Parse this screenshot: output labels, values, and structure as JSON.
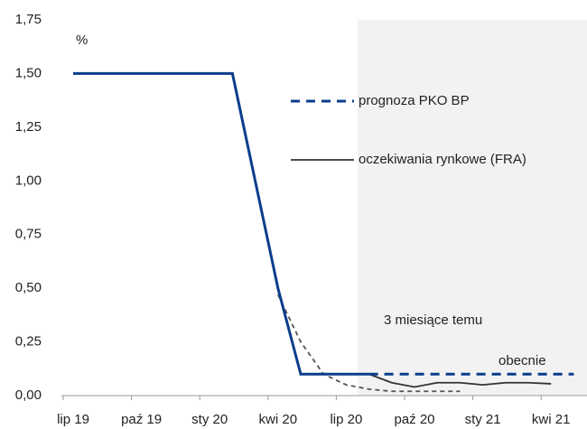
{
  "chart_data": {
    "type": "line",
    "unit_label": "%",
    "categories": [
      "lip 19",
      null,
      null,
      "paź 19",
      null,
      null,
      "sty 20",
      null,
      null,
      "kwi 20",
      null,
      null,
      "lip 20",
      null,
      null,
      "paź 20",
      null,
      null,
      "sty 21",
      null,
      null,
      "kwi 21",
      null
    ],
    "series": [
      {
        "name": "prognoza PKO BP",
        "color": "#0b3d8c",
        "dash": true,
        "legend": true,
        "solid_through": 13,
        "values": [
          1.5,
          1.5,
          1.5,
          1.5,
          1.5,
          1.5,
          1.5,
          1.5,
          1.0,
          0.5,
          0.1,
          0.1,
          0.1,
          0.1,
          0.1,
          0.1,
          0.1,
          0.1,
          0.1,
          0.1,
          0.1,
          0.1,
          0.1
        ]
      },
      {
        "name": "oczekiwania rynkowe (FRA)",
        "color": "#333333",
        "dash": false,
        "legend": true,
        "values": [
          null,
          null,
          null,
          null,
          null,
          null,
          null,
          null,
          null,
          null,
          null,
          null,
          null,
          0.1,
          0.06,
          0.04,
          0.06,
          0.06,
          0.05,
          0.06,
          0.06,
          0.055,
          null
        ]
      },
      {
        "name": "3 miesiące temu",
        "color": "#555555",
        "dash": true,
        "legend": false,
        "values": [
          null,
          null,
          null,
          null,
          null,
          null,
          null,
          null,
          null,
          0.47,
          0.25,
          0.1,
          0.05,
          0.03,
          0.02,
          0.02,
          0.02,
          0.02,
          null,
          null,
          null,
          null,
          null
        ]
      }
    ],
    "annotations": [
      {
        "text": "obecnie"
      }
    ],
    "ylim": [
      0,
      1.75
    ],
    "yticks": [
      {
        "value": 0,
        "label": "0,00"
      },
      {
        "value": 0.25,
        "label": "0,25"
      },
      {
        "value": 0.5,
        "label": "0,50"
      },
      {
        "value": 0.75,
        "label": "0,75"
      },
      {
        "value": 1.0,
        "label": "1,00"
      },
      {
        "value": 1.25,
        "label": "1,25"
      },
      {
        "value": 1.5,
        "label": "1,50"
      },
      {
        "value": 1.75,
        "label": "1,75"
      }
    ],
    "shade_forecast": true,
    "grid": false
  }
}
